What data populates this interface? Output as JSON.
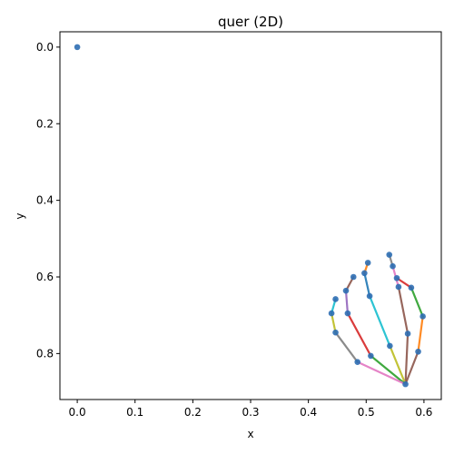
{
  "chart_data": {
    "type": "scatter",
    "title": "quer (2D)",
    "xlabel": "x",
    "ylabel": "y",
    "xlim": [
      -0.03,
      0.63
    ],
    "ylim": [
      0.92,
      -0.04
    ],
    "y_axis_inverted": true,
    "grid": false,
    "legend": "none",
    "x_ticks": [
      "0.0",
      "0.1",
      "0.2",
      "0.3",
      "0.4",
      "0.5",
      "0.6"
    ],
    "y_ticks": [
      "0.0",
      "0.2",
      "0.4",
      "0.6",
      "0.8"
    ],
    "x_tick_values": [
      0.0,
      0.1,
      0.2,
      0.3,
      0.4,
      0.5,
      0.6
    ],
    "y_tick_values": [
      0.0,
      0.2,
      0.4,
      0.6,
      0.8
    ],
    "point_color": "#2e6eb3",
    "points": [
      {
        "x": 0.0,
        "y": 0.0
      },
      {
        "x": 0.568,
        "y": 0.88
      },
      {
        "x": 0.59,
        "y": 0.795
      },
      {
        "x": 0.598,
        "y": 0.703
      },
      {
        "x": 0.578,
        "y": 0.628
      },
      {
        "x": 0.553,
        "y": 0.603
      },
      {
        "x": 0.572,
        "y": 0.748
      },
      {
        "x": 0.556,
        "y": 0.626
      },
      {
        "x": 0.546,
        "y": 0.572
      },
      {
        "x": 0.54,
        "y": 0.542
      },
      {
        "x": 0.541,
        "y": 0.78
      },
      {
        "x": 0.506,
        "y": 0.65
      },
      {
        "x": 0.497,
        "y": 0.59
      },
      {
        "x": 0.503,
        "y": 0.563
      },
      {
        "x": 0.508,
        "y": 0.806
      },
      {
        "x": 0.468,
        "y": 0.695
      },
      {
        "x": 0.465,
        "y": 0.636
      },
      {
        "x": 0.478,
        "y": 0.6
      },
      {
        "x": 0.485,
        "y": 0.822
      },
      {
        "x": 0.447,
        "y": 0.745
      },
      {
        "x": 0.44,
        "y": 0.695
      },
      {
        "x": 0.447,
        "y": 0.658
      }
    ],
    "segments": [
      {
        "from": 1,
        "to": 2,
        "color": "#8c564b"
      },
      {
        "from": 2,
        "to": 3,
        "color": "#ff7f0e"
      },
      {
        "from": 3,
        "to": 4,
        "color": "#2ca02c"
      },
      {
        "from": 4,
        "to": 5,
        "color": "#d62728"
      },
      {
        "from": 1,
        "to": 6,
        "color": "#8c564b"
      },
      {
        "from": 6,
        "to": 7,
        "color": "#8c564b"
      },
      {
        "from": 7,
        "to": 8,
        "color": "#e377c2"
      },
      {
        "from": 8,
        "to": 9,
        "color": "#7f7f7f"
      },
      {
        "from": 1,
        "to": 10,
        "color": "#bcbd22"
      },
      {
        "from": 10,
        "to": 11,
        "color": "#17becf"
      },
      {
        "from": 11,
        "to": 12,
        "color": "#1f77b4"
      },
      {
        "from": 12,
        "to": 13,
        "color": "#ff7f0e"
      },
      {
        "from": 1,
        "to": 14,
        "color": "#2ca02c"
      },
      {
        "from": 14,
        "to": 15,
        "color": "#d62728"
      },
      {
        "from": 15,
        "to": 16,
        "color": "#9467bd"
      },
      {
        "from": 16,
        "to": 17,
        "color": "#8c564b"
      },
      {
        "from": 1,
        "to": 18,
        "color": "#e377c2"
      },
      {
        "from": 18,
        "to": 19,
        "color": "#7f7f7f"
      },
      {
        "from": 19,
        "to": 20,
        "color": "#bcbd22"
      },
      {
        "from": 20,
        "to": 21,
        "color": "#17becf"
      }
    ]
  }
}
